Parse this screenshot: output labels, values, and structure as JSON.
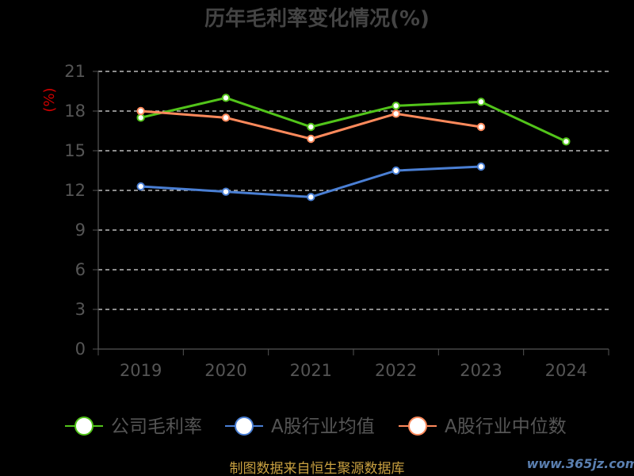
{
  "chart_data": {
    "type": "line",
    "title": "历年毛利率变化情况(%)",
    "ylabel": "(%)",
    "xlabel": "",
    "categories": [
      "2019",
      "2020",
      "2021",
      "2022",
      "2023",
      "2024"
    ],
    "yticks": [
      0,
      3,
      6,
      9,
      12,
      15,
      18,
      21
    ],
    "ylim": [
      0,
      21
    ],
    "grid": true,
    "legend_position": "bottom",
    "series": [
      {
        "name": "公司毛利率",
        "color": "#52c41a",
        "values": [
          17.5,
          19.0,
          16.8,
          18.4,
          18.7,
          15.7
        ]
      },
      {
        "name": "A股行业均值",
        "color": "#4a7fd4",
        "values": [
          12.3,
          11.9,
          11.5,
          13.5,
          13.8,
          null
        ]
      },
      {
        "name": "A股行业中位数",
        "color": "#ff8a5c",
        "values": [
          18.0,
          17.5,
          15.9,
          17.8,
          16.8,
          null
        ]
      }
    ]
  },
  "footer": {
    "source": "制图数据来自恒生聚源数据库",
    "watermark": "www.365jz.com"
  }
}
